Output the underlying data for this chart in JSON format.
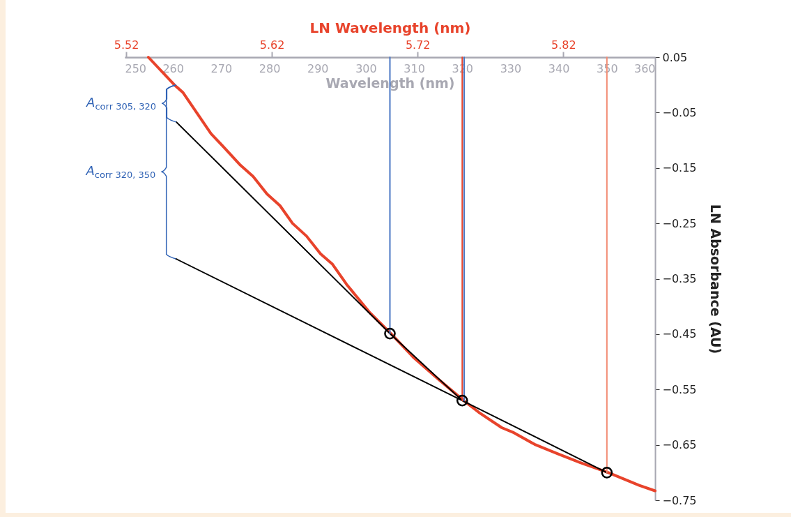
{
  "chart_data": {
    "type": "line",
    "xlabel": "Wavelength (nm)",
    "x2label": "LN Wavelength (nm)",
    "ylabel": "LN Absorbance (AU)",
    "xlim": [
      250,
      360
    ],
    "xticks": [
      250,
      260,
      270,
      280,
      290,
      300,
      310,
      320,
      330,
      340,
      350,
      360
    ],
    "x2lim": [
      5.519,
      5.883
    ],
    "x2ticks": [
      5.52,
      5.62,
      5.72,
      5.82
    ],
    "ylim": [
      -0.75,
      0.05
    ],
    "yticks": [
      0.05,
      -0.05,
      -0.15,
      -0.25,
      -0.35,
      -0.45,
      -0.55,
      -0.65,
      -0.75
    ],
    "annotations": [
      "A$_{corr 305, 320}$",
      "A$_{corr 320, 350}$"
    ],
    "series": [
      {
        "color": "#e8432b",
        "x": [
          254.9,
          260.3,
          262.1,
          267.9,
          270.4,
          274.0,
          276.6,
          279.5,
          282.2,
          284.8,
          287.7,
          290.6,
          293.1,
          296.0,
          300.7,
          305.2,
          310,
          315,
          320.3,
          323.4,
          328.2,
          330.7,
          335.0,
          339.8,
          344.5,
          350.3,
          356.7,
          360
        ],
        "values": [
          0.05,
          0.0,
          -0.014,
          -0.088,
          -0.111,
          -0.145,
          -0.165,
          -0.197,
          -0.218,
          -0.25,
          -0.273,
          -0.305,
          -0.324,
          -0.36,
          -0.41,
          -0.449,
          -0.493,
          -0.531,
          -0.57,
          -0.591,
          -0.619,
          -0.628,
          -0.649,
          -0.666,
          -0.682,
          -0.7,
          -0.723,
          -0.733
        ]
      },
      {
        "color": "#000000",
        "x": [
          260.7,
          305,
          320
        ],
        "values": [
          -0.067,
          -0.449,
          -0.57
        ]
      },
      {
        "color": "#000000",
        "x": [
          260.6,
          320,
          350
        ],
        "values": [
          -0.314,
          -0.57,
          -0.7
        ]
      },
      {
        "color": "#4a77c4",
        "x": [
          305,
          305
        ],
        "values": [
          0.05,
          -0.449
        ]
      },
      {
        "color": "#e8432b",
        "x": [
          320,
          320
        ],
        "values": [
          0.05,
          -0.57
        ]
      },
      {
        "color": "#4a77c4",
        "x": [
          320.4,
          320.4
        ],
        "values": [
          0.05,
          -0.57
        ]
      },
      {
        "color": "#f28b72",
        "x": [
          350,
          350
        ],
        "values": [
          0.05,
          -0.7
        ]
      },
      {
        "type": "scatter",
        "color": "#000000",
        "marker": "circle",
        "x": [
          305,
          320,
          350
        ],
        "values": [
          -0.449,
          -0.57,
          -0.7
        ]
      }
    ]
  }
}
